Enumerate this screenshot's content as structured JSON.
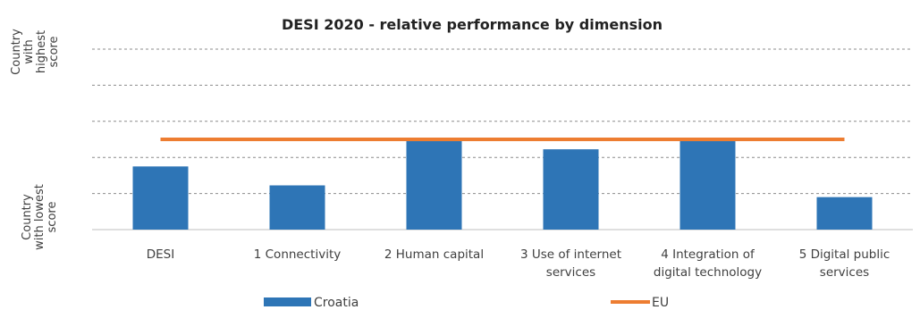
{
  "chart_data": {
    "type": "bar",
    "title": "DESI 2020 - relative performance by dimension",
    "ylabel_top": [
      "Country",
      "with",
      "highest",
      "score"
    ],
    "ylabel_bottom": [
      "Country",
      "with lowest",
      "score"
    ],
    "categories": [
      [
        "DESI"
      ],
      [
        "1 Connectivity"
      ],
      [
        "2 Human capital"
      ],
      [
        "3 Use of internet",
        "services"
      ],
      [
        "4 Integration of",
        "digital technology"
      ],
      [
        "5 Digital public",
        "services"
      ]
    ],
    "ylim": [
      0,
      1
    ],
    "grid": true,
    "series": [
      {
        "name": "Croatia",
        "type": "bar",
        "color": "#2e75b6",
        "values": [
          0.35,
          0.245,
          0.49,
          0.445,
          0.49,
          0.18
        ]
      },
      {
        "name": "EU",
        "type": "line",
        "color": "#ed7d31",
        "values": [
          0.5,
          0.5,
          0.5,
          0.5,
          0.5,
          0.5
        ]
      }
    ],
    "legend": "bottom"
  }
}
